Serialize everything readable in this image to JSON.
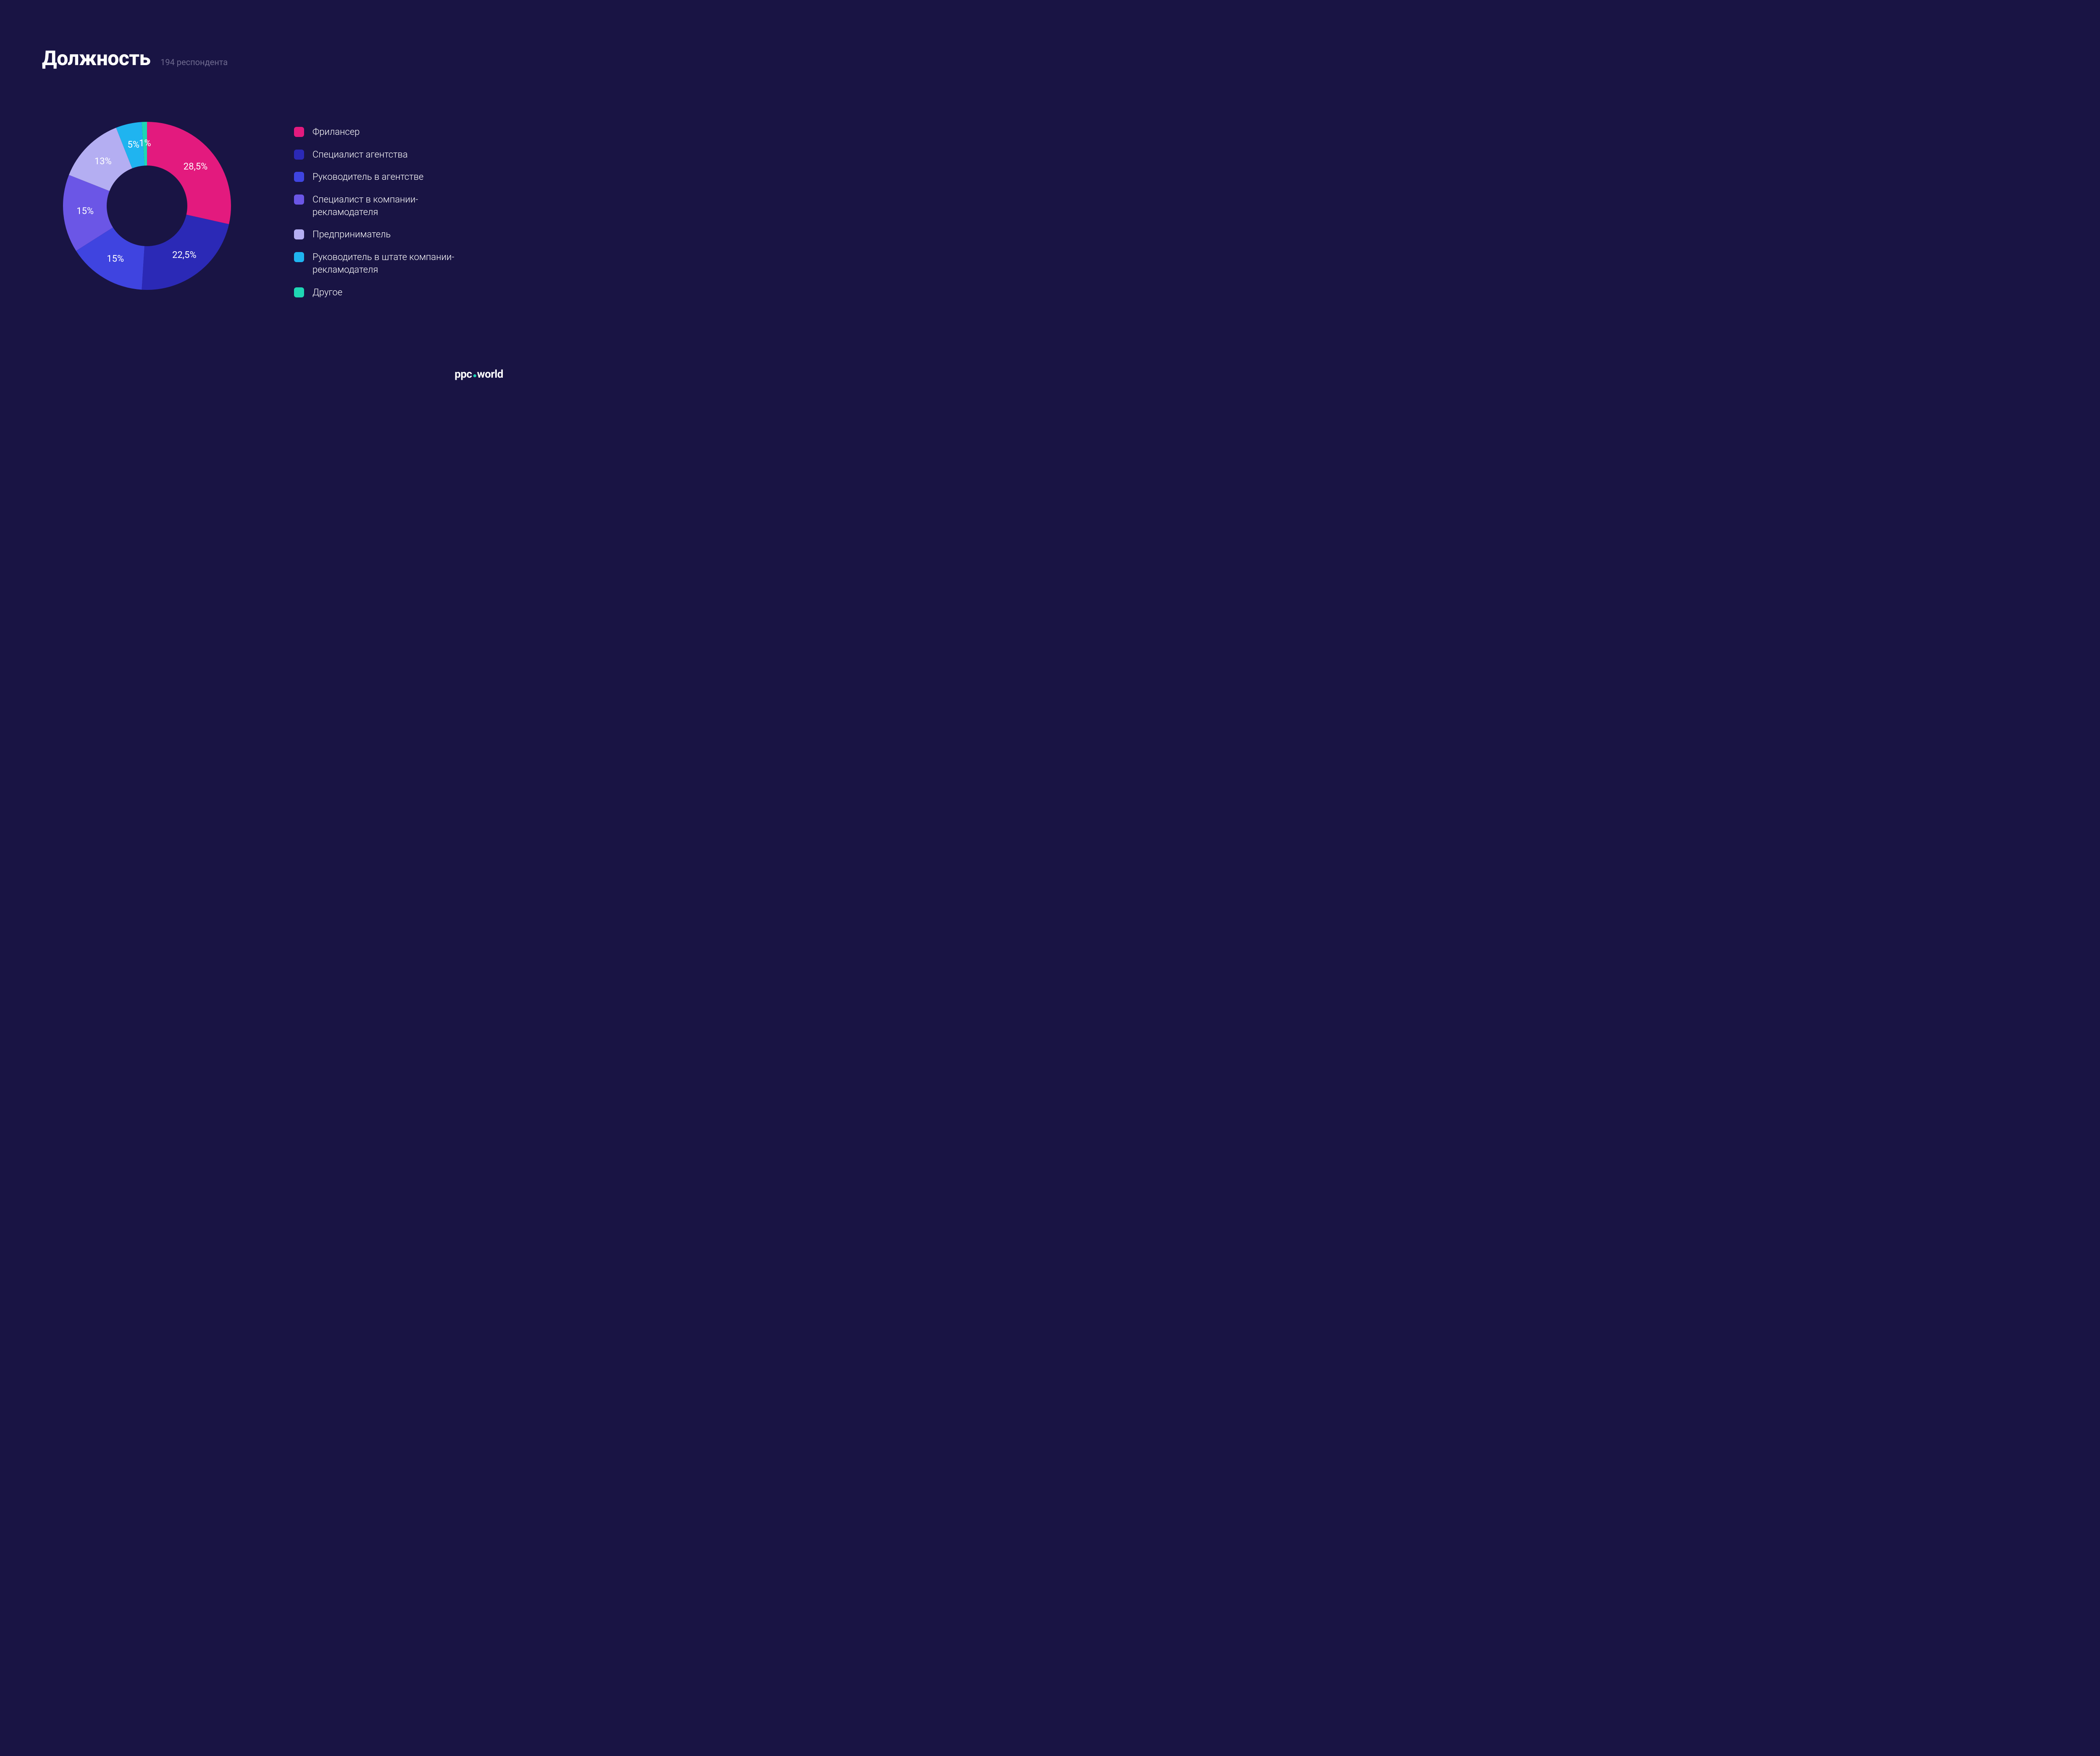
{
  "header": {
    "title": "Должность",
    "subtitle": "194 респондента",
    "title_fontsize": 48,
    "subtitle_fontsize": 20,
    "title_color": "#ffffff",
    "subtitle_color": "#6e6a8f"
  },
  "chart": {
    "type": "donut",
    "background_color": "#191444",
    "outer_radius": 200,
    "inner_radius": 96,
    "start_angle_deg": 0,
    "label_fontsize": 22,
    "label_color": "#ffffff",
    "slices": [
      {
        "label": "Фрилансер",
        "value": 28.5,
        "display": "28,5%",
        "color": "#e31a7e"
      },
      {
        "label": "Специалист агентства",
        "value": 22.5,
        "display": "22,5%",
        "color": "#2b29b6"
      },
      {
        "label": "Руководитель в агентстве",
        "value": 15,
        "display": "15%",
        "color": "#3f44e0"
      },
      {
        "label": "Специалист в компании-рекламодателя",
        "value": 15,
        "display": "15%",
        "color": "#6b56e6"
      },
      {
        "label": "Предприниматель",
        "value": 13,
        "display": "13%",
        "color": "#b4aef2"
      },
      {
        "label": "Руководитель в штате компании-рекламодателя",
        "value": 5,
        "display": "5%",
        "color": "#1fb4f0"
      },
      {
        "label": "Другое",
        "value": 1,
        "display": "1%",
        "color": "#1fd6b4"
      }
    ]
  },
  "legend": {
    "fontsize": 22,
    "label_color": "#ffffff",
    "swatch_radius": 6
  },
  "brand": {
    "part1": "ppc",
    "part2": "world",
    "dot_color": "#1fd6b4",
    "text_color": "#ffffff",
    "fontsize": 26
  }
}
